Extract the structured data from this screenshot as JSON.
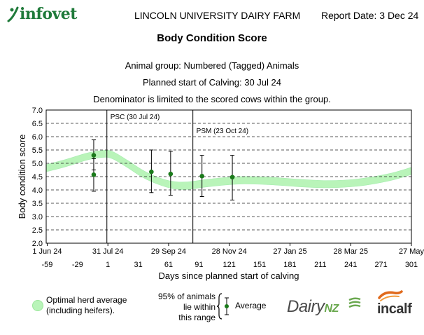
{
  "header": {
    "logo_text": "infovet",
    "farm_name": "LINCOLN UNIVERSITY DAIRY FARM",
    "report_date": "Report Date: 3 Dec 24"
  },
  "report": {
    "title": "Body Condition Score",
    "animal_group": "Animal group: Numbered (Tagged) Animals",
    "planned_start": "Planned start of Calving: 30 Jul 24",
    "denominator_note": "Denominator is limited to the scored cows within the group."
  },
  "legend": {
    "band_label_1": "Optimal herd average",
    "band_label_2": "(including heifers).",
    "ci_label_1": "95% of animals",
    "ci_label_2": "lie within",
    "ci_label_3": "this range",
    "avg_label": "Average",
    "band_color": "#b9f4b9",
    "point_color": "#1a7a1a"
  },
  "logos": {
    "dairynz_main": "Dairy",
    "dairynz_nz": "NZ",
    "incalf": "incalf"
  },
  "chart_data": {
    "type": "scatter",
    "ylabel": "Body condition score",
    "xlabel": "Days since planned start of calving",
    "ylim": [
      2.0,
      7.0
    ],
    "yticks": [
      "7.0",
      "6.5",
      "6.0",
      "5.5",
      "5.0",
      "4.5",
      "4.0",
      "3.5",
      "3.0",
      "2.5",
      "2.0"
    ],
    "xlim": [
      -60,
      301
    ],
    "date_ticks": [
      {
        "label": "1 Jun 24",
        "day": -59
      },
      {
        "label": "31 Jul 24",
        "day": 1
      },
      {
        "label": "29 Sep 24",
        "day": 61
      },
      {
        "label": "28 Nov 24",
        "day": 121
      },
      {
        "label": "27 Jan 25",
        "day": 181
      },
      {
        "label": "28 Mar 25",
        "day": 241
      },
      {
        "label": "27 May",
        "day": 301
      }
    ],
    "day_ticks": [
      {
        "label": "-59",
        "day": -59
      },
      {
        "label": "-29",
        "day": -29
      },
      {
        "label": "1",
        "day": 1
      },
      {
        "label": "31",
        "day": 31
      },
      {
        "label": "61",
        "day": 61
      },
      {
        "label": "91",
        "day": 91
      },
      {
        "label": "121",
        "day": 121
      },
      {
        "label": "151",
        "day": 151
      },
      {
        "label": "181",
        "day": 181
      },
      {
        "label": "211",
        "day": 211
      },
      {
        "label": "241",
        "day": 241
      },
      {
        "label": "271",
        "day": 271
      },
      {
        "label": "301",
        "day": 301
      }
    ],
    "markers": [
      {
        "label": "PSC (30 Jul 24)",
        "day": 0
      },
      {
        "label": "PSM (23 Oct 24)",
        "day": 85
      }
    ],
    "optimal_band": [
      {
        "day": -60,
        "low": 4.68,
        "high": 4.95
      },
      {
        "day": -40,
        "low": 4.88,
        "high": 5.15
      },
      {
        "day": -20,
        "low": 5.12,
        "high": 5.38
      },
      {
        "day": -5,
        "low": 5.22,
        "high": 5.48
      },
      {
        "day": 5,
        "low": 5.18,
        "high": 5.45
      },
      {
        "day": 20,
        "low": 4.85,
        "high": 5.12
      },
      {
        "day": 35,
        "low": 4.48,
        "high": 4.75
      },
      {
        "day": 50,
        "low": 4.22,
        "high": 4.48
      },
      {
        "day": 65,
        "low": 4.05,
        "high": 4.32
      },
      {
        "day": 80,
        "low": 4.02,
        "high": 4.3
      },
      {
        "day": 100,
        "low": 4.12,
        "high": 4.4
      },
      {
        "day": 130,
        "low": 4.22,
        "high": 4.5
      },
      {
        "day": 160,
        "low": 4.2,
        "high": 4.48
      },
      {
        "day": 190,
        "low": 4.12,
        "high": 4.4
      },
      {
        "day": 220,
        "low": 4.08,
        "high": 4.35
      },
      {
        "day": 250,
        "low": 4.15,
        "high": 4.42
      },
      {
        "day": 280,
        "low": 4.35,
        "high": 4.62
      },
      {
        "day": 301,
        "low": 4.58,
        "high": 4.85
      }
    ],
    "points": [
      {
        "day": -13,
        "avg": 5.3,
        "low": 4.75,
        "high": 5.88
      },
      {
        "day": -13,
        "avg": 4.57,
        "low": 3.95,
        "high": 5.17
      },
      {
        "day": 44,
        "avg": 4.68,
        "low": 3.9,
        "high": 5.5
      },
      {
        "day": 63,
        "avg": 4.6,
        "low": 3.8,
        "high": 5.45
      },
      {
        "day": 94,
        "avg": 4.52,
        "low": 3.75,
        "high": 5.3
      },
      {
        "day": 124,
        "avg": 4.48,
        "low": 3.62,
        "high": 5.3
      }
    ]
  }
}
